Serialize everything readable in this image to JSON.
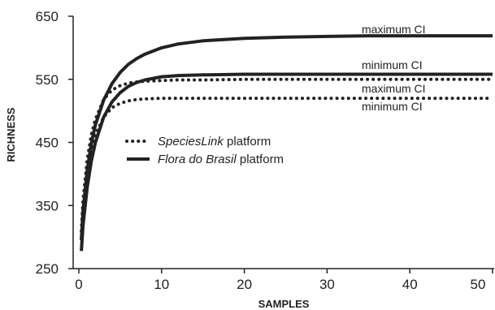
{
  "chart_data": {
    "type": "line",
    "xlabel": "SAMPLES",
    "ylabel": "RICHNESS",
    "xlim": [
      0,
      50
    ],
    "ylim": [
      250,
      650
    ],
    "x_ticks": [
      "0",
      "10",
      "20",
      "30",
      "40",
      "50"
    ],
    "y_ticks": [
      "250",
      "350",
      "450",
      "550",
      "650"
    ],
    "grid": false,
    "legend": {
      "placement": "center-left",
      "entries": [
        {
          "style": "dotted",
          "label_italic": "SpeciesLink",
          "label_rest": " platform"
        },
        {
          "style": "solid",
          "label_italic": "Flora do Brasil",
          "label_rest": " platform"
        }
      ]
    },
    "annotations": [
      "maximum CI",
      "minimum CI",
      "maximum CI",
      "minimum CI"
    ],
    "x": [
      0.3,
      0.5,
      1,
      1.5,
      2,
      3,
      4,
      5,
      6,
      7,
      8,
      10,
      12,
      15,
      20,
      25,
      30,
      35,
      40,
      45,
      50
    ],
    "series": [
      {
        "style": "solid",
        "values": [
          295,
          340,
          405,
          448,
          478,
          517,
          543,
          561,
          574,
          583,
          590,
          600,
          606,
          611,
          615,
          617,
          618,
          619,
          619,
          619,
          619
        ]
      },
      {
        "style": "solid",
        "values": [
          278,
          318,
          378,
          420,
          450,
          490,
          514,
          529,
          539,
          545,
          549,
          554,
          556,
          557,
          558,
          558,
          558,
          558,
          558,
          558,
          558
        ]
      },
      {
        "style": "dotted",
        "values": [
          310,
          358,
          422,
          462,
          487,
          518,
          533,
          540,
          544,
          546,
          547,
          548,
          549,
          549,
          550,
          550,
          550,
          550,
          550,
          550,
          550
        ]
      },
      {
        "style": "dotted",
        "values": [
          298,
          342,
          400,
          438,
          462,
          490,
          505,
          512,
          516,
          518,
          519,
          520,
          520,
          520,
          520,
          520,
          520,
          520,
          520,
          520,
          520
        ]
      }
    ]
  }
}
